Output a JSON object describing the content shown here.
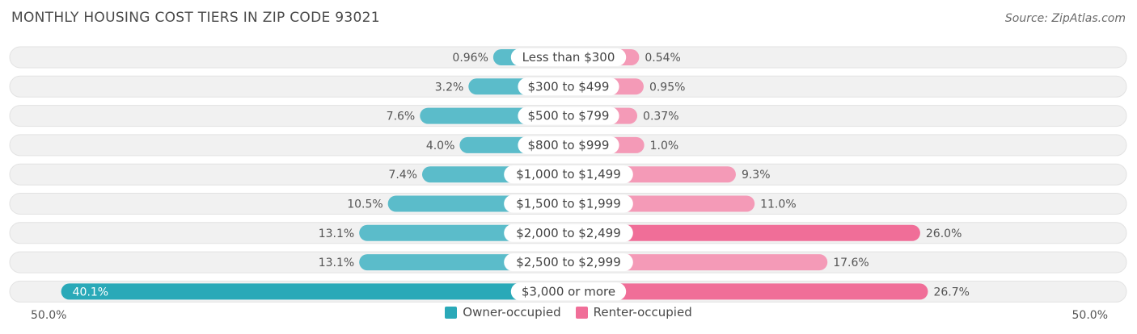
{
  "title": "MONTHLY HOUSING COST TIERS IN ZIP CODE 93021",
  "source": "Source: ZipAtlas.com",
  "colors": {
    "owner": "#5bbcca",
    "owner_dark": "#2aa9b8",
    "renter": "#f49ab7",
    "renter_dark": "#f06e98",
    "row_bg": "#f1f1f1",
    "row_border": "#e2e2e2"
  },
  "chart_data": {
    "type": "bar",
    "orientation": "horizontal-diverging",
    "categories": [
      "Less than $300",
      "$300 to $499",
      "$500 to $799",
      "$800 to $999",
      "$1,000 to $1,499",
      "$1,500 to $1,999",
      "$2,000 to $2,499",
      "$2,500 to $2,999",
      "$3,000 or more"
    ],
    "series": [
      {
        "name": "Owner-occupied",
        "values": [
          0.96,
          3.2,
          7.6,
          4.0,
          7.4,
          10.5,
          13.1,
          13.1,
          40.1
        ],
        "labels": [
          "0.96%",
          "3.2%",
          "7.6%",
          "4.0%",
          "7.4%",
          "10.5%",
          "13.1%",
          "13.1%",
          "40.1%"
        ]
      },
      {
        "name": "Renter-occupied",
        "values": [
          0.54,
          0.95,
          0.37,
          1.0,
          9.3,
          11.0,
          26.0,
          17.6,
          26.7
        ],
        "labels": [
          "0.54%",
          "0.95%",
          "0.37%",
          "1.0%",
          "9.3%",
          "11.0%",
          "26.0%",
          "17.6%",
          "26.7%"
        ]
      }
    ],
    "xlim": [
      -50,
      50
    ],
    "axis_left_label": "50.0%",
    "axis_right_label": "50.0%",
    "legend_position": "bottom-center"
  }
}
